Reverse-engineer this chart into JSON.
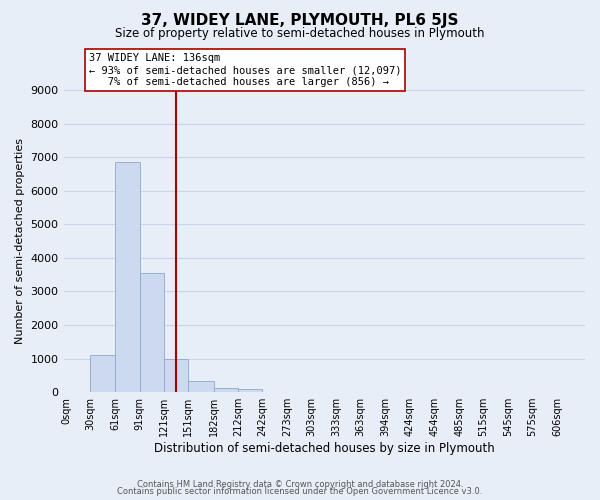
{
  "title": "37, WIDEY LANE, PLYMOUTH, PL6 5JS",
  "subtitle": "Size of property relative to semi-detached houses in Plymouth",
  "xlabel": "Distribution of semi-detached houses by size in Plymouth",
  "ylabel": "Number of semi-detached properties",
  "bar_labels": [
    "0sqm",
    "30sqm",
    "61sqm",
    "91sqm",
    "121sqm",
    "151sqm",
    "182sqm",
    "212sqm",
    "242sqm",
    "273sqm",
    "303sqm",
    "333sqm",
    "363sqm",
    "394sqm",
    "424sqm",
    "454sqm",
    "485sqm",
    "515sqm",
    "545sqm",
    "575sqm",
    "606sqm"
  ],
  "bar_values": [
    0,
    1100,
    6850,
    3550,
    980,
    340,
    135,
    100,
    0,
    0,
    0,
    0,
    0,
    0,
    0,
    0,
    0,
    0,
    0,
    0
  ],
  "bar_color": "#ccd9ee",
  "bar_edge_color": "#8aaad0",
  "property_line_x": 136,
  "property_line_color": "#aa0000",
  "annotation_text": "37 WIDEY LANE: 136sqm\n← 93% of semi-detached houses are smaller (12,097)\n   7% of semi-detached houses are larger (856) →",
  "annotation_box_color": "#ffffff",
  "annotation_box_edge": "#aa0000",
  "ylim": [
    0,
    9000
  ],
  "yticks": [
    0,
    1000,
    2000,
    3000,
    4000,
    5000,
    6000,
    7000,
    8000,
    9000
  ],
  "grid_color": "#c8d4e8",
  "background_color": "#e8eef8",
  "footer_line1": "Contains HM Land Registry data © Crown copyright and database right 2024.",
  "footer_line2": "Contains public sector information licensed under the Open Government Licence v3.0."
}
